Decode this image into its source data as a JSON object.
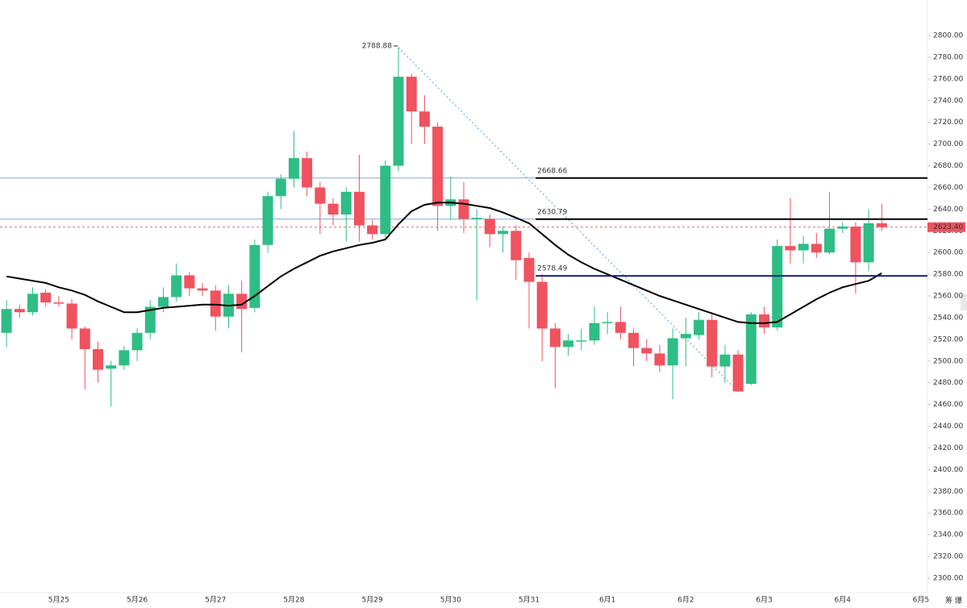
{
  "chart_data": {
    "type": "candlestick",
    "categories": [
      null,
      null,
      null,
      null,
      "5月25",
      null,
      null,
      null,
      null,
      null,
      "5月26",
      null,
      null,
      null,
      null,
      null,
      "5月27",
      null,
      null,
      null,
      null,
      null,
      "5月28",
      null,
      null,
      null,
      null,
      null,
      "5月29",
      null,
      null,
      null,
      null,
      null,
      "5月30",
      null,
      null,
      null,
      null,
      null,
      "5月31",
      null,
      null,
      null,
      null,
      null,
      "6月1",
      null,
      null,
      null,
      null,
      null,
      "6月2",
      null,
      null,
      null,
      null,
      null,
      "6月3",
      null,
      null,
      null,
      null,
      null,
      "6月4",
      null,
      null,
      null,
      null,
      null,
      "6月5"
    ],
    "open": [
      2526,
      2548,
      2545,
      2563,
      2554,
      2553,
      2530,
      2511,
      2493,
      2496,
      2510,
      2526,
      2550,
      2559,
      2579,
      2567,
      2565,
      2541,
      2562,
      2549,
      2607,
      2652,
      2668,
      2687,
      2660,
      2645,
      2635,
      2656,
      2625,
      2617,
      2680,
      2762,
      2730,
      2716,
      2643,
      2649,
      2631,
      2631,
      2617,
      2620,
      2595,
      2573,
      2530,
      2513,
      2518,
      2519,
      2535,
      2536,
      2526,
      2512,
      2507,
      2496,
      2521,
      2524,
      2538,
      2495,
      2506,
      2479,
      2543,
      2531,
      2606,
      2602,
      2608,
      2600,
      2622,
      2624,
      2591,
      2627,
      null,
      null,
      null
    ],
    "high": [
      2556,
      2552,
      2568,
      2566,
      2560,
      2557,
      2532,
      2518,
      2500,
      2514,
      2530,
      2556,
      2568,
      2590,
      2582,
      2572,
      2570,
      2570,
      2574,
      2612,
      2656,
      2672,
      2712,
      2693,
      2665,
      2650,
      2660,
      2690,
      2630,
      2685,
      2789,
      2765,
      2745,
      2720,
      2670,
      2665,
      2640,
      2635,
      2624,
      2625,
      2600,
      2580,
      2535,
      2525,
      2530,
      2550,
      2545,
      2550,
      2530,
      2520,
      2515,
      2530,
      2540,
      2545,
      2545,
      2515,
      2510,
      2545,
      2550,
      2612,
      2650,
      2615,
      2618,
      2656,
      2628,
      2628,
      2640,
      2645,
      null,
      null,
      null
    ],
    "low": [
      2513,
      2540,
      2542,
      2550,
      2550,
      2520,
      2474,
      2480,
      2458,
      2492,
      2500,
      2520,
      2545,
      2555,
      2560,
      2560,
      2528,
      2530,
      2508,
      2545,
      2600,
      2640,
      2660,
      2652,
      2617,
      2625,
      2610,
      2610,
      2612,
      2612,
      2675,
      2700,
      2700,
      2620,
      2630,
      2618,
      2556,
      2605,
      2600,
      2575,
      2530,
      2500,
      2475,
      2505,
      2510,
      2515,
      2525,
      2520,
      2495,
      2500,
      2490,
      2465,
      2495,
      2520,
      2485,
      2480,
      2472,
      2478,
      2525,
      2528,
      2590,
      2590,
      2595,
      2598,
      2618,
      2562,
      2583,
      2620,
      null,
      null,
      null
    ],
    "close": [
      2548,
      2545,
      2562,
      2554,
      2553,
      2530,
      2511,
      2492,
      2496,
      2510,
      2526,
      2550,
      2559,
      2579,
      2567,
      2565,
      2541,
      2562,
      2548,
      2607,
      2652,
      2668,
      2687,
      2660,
      2645,
      2635,
      2656,
      2625,
      2617,
      2680,
      2762,
      2730,
      2716,
      2643,
      2649,
      2631,
      2632,
      2617,
      2620,
      2593,
      2573,
      2530,
      2513,
      2519,
      2519,
      2535,
      2536,
      2526,
      2512,
      2507,
      2496,
      2521,
      2525,
      2538,
      2495,
      2506,
      2472,
      2543,
      2531,
      2606,
      2602,
      2608,
      2600,
      2622,
      2624,
      2591,
      2627,
      2623.4,
      null,
      null,
      null
    ],
    "up_color": "#2ebd85",
    "down_color": "#f0525f",
    "moving_average": {
      "color": "#000000",
      "values": [
        2578,
        2576,
        2574,
        2572,
        2568,
        2565,
        2561,
        2555,
        2550,
        2545,
        2545,
        2547,
        2549,
        2550,
        2551,
        2552,
        2552,
        2551,
        2552,
        2560,
        2569,
        2578,
        2585,
        2591,
        2597,
        2601,
        2604,
        2607,
        2609,
        2612,
        2626,
        2638,
        2644,
        2646,
        2646,
        2645,
        2643,
        2641,
        2637,
        2632,
        2627,
        2617,
        2607,
        2598,
        2591,
        2585,
        2580,
        2575,
        2570,
        2565,
        2560,
        2556,
        2552,
        2548,
        2544,
        2540,
        2536,
        2535,
        2535,
        2536,
        2543,
        2550,
        2557,
        2563,
        2568,
        2571,
        2574,
        2581,
        null,
        null,
        null
      ]
    },
    "levels": [
      {
        "value": 2668.66,
        "color": "#000000",
        "from": 41
      },
      {
        "value": 2630.79,
        "color": "#000000",
        "from": 41
      },
      {
        "value": 2578.49,
        "color": "#1a237e",
        "from": 41
      }
    ],
    "guide_lines": [
      {
        "value": 2668.66,
        "color": "#7fa9dd"
      },
      {
        "value": 2630.79,
        "color": "#7fa9dd"
      }
    ],
    "last_price": {
      "value": 2623.4,
      "label": "2623.40",
      "color": "#f0525f"
    },
    "trendline": {
      "from": [
        30,
        2788.88
      ],
      "to": [
        56,
        2472
      ],
      "color": "#5b9bd5"
    },
    "ylim": [
      2286.6,
      2832.7
    ],
    "yticks": [
      {
        "value": 2300,
        "label": "2300.00"
      },
      {
        "value": 2320,
        "label": "2320.00"
      },
      {
        "value": 2340,
        "label": "2340.00"
      },
      {
        "value": 2360,
        "label": "2360.00"
      },
      {
        "value": 2380,
        "label": "2380.00"
      },
      {
        "value": 2400,
        "label": "2400.00"
      },
      {
        "value": 2420,
        "label": "2420.00"
      },
      {
        "value": 2440,
        "label": "2440.00"
      },
      {
        "value": 2460,
        "label": "2460.00"
      },
      {
        "value": 2480,
        "label": "2480.00"
      },
      {
        "value": 2500,
        "label": "2500.00"
      },
      {
        "value": 2520,
        "label": "2520.00"
      },
      {
        "value": 2540,
        "label": "2540.00"
      },
      {
        "value": 2560,
        "label": "2560.00"
      },
      {
        "value": 2580,
        "label": "2580.00"
      },
      {
        "value": 2600,
        "label": "2600.00"
      },
      {
        "value": 2620,
        "label": "2620.00"
      },
      {
        "value": 2640,
        "label": "2640.00"
      },
      {
        "value": 2660,
        "label": "2660.00"
      },
      {
        "value": 2680,
        "label": "2680.00"
      },
      {
        "value": 2700,
        "label": "2700.00"
      },
      {
        "value": 2720,
        "label": "2720.00"
      },
      {
        "value": 2740,
        "label": "2740.00"
      },
      {
        "value": 2760,
        "label": "2760.00"
      },
      {
        "value": 2780,
        "label": "2780.00"
      },
      {
        "value": 2800,
        "label": "2800.00"
      }
    ],
    "grid": false,
    "toolbar": [
      "筹",
      "爆"
    ]
  }
}
